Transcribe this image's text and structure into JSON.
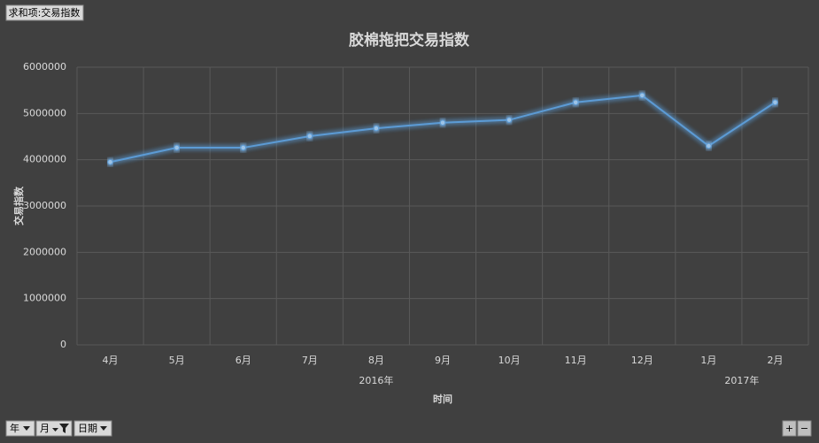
{
  "chart_data": {
    "type": "line",
    "title": "胶棉拖把交易指数",
    "categories": [
      "4月",
      "5月",
      "6月",
      "7月",
      "8月",
      "9月",
      "10月",
      "11月",
      "12月",
      "1月",
      "2月"
    ],
    "x_groups": [
      {
        "label": "2016年",
        "count": 9
      },
      {
        "label": "2017年",
        "count": 2
      }
    ],
    "series": [
      {
        "name": "交易指数",
        "color": "#5b9bd5",
        "values": [
          3950000,
          4260000,
          4260000,
          4510000,
          4680000,
          4800000,
          4860000,
          5240000,
          5390000,
          4300000,
          5240000
        ]
      }
    ],
    "ylim": [
      0,
      6000000
    ],
    "yticks": [
      0,
      1000000,
      2000000,
      3000000,
      4000000,
      5000000,
      6000000
    ],
    "ylabel": "交易指数",
    "xlabel": "时间",
    "grid": true
  },
  "pivot_buttons": {
    "value_field": "求和项:交易指数",
    "axis_fields": [
      "年",
      "月",
      "日期"
    ],
    "zoom": [
      "+",
      "−"
    ]
  }
}
